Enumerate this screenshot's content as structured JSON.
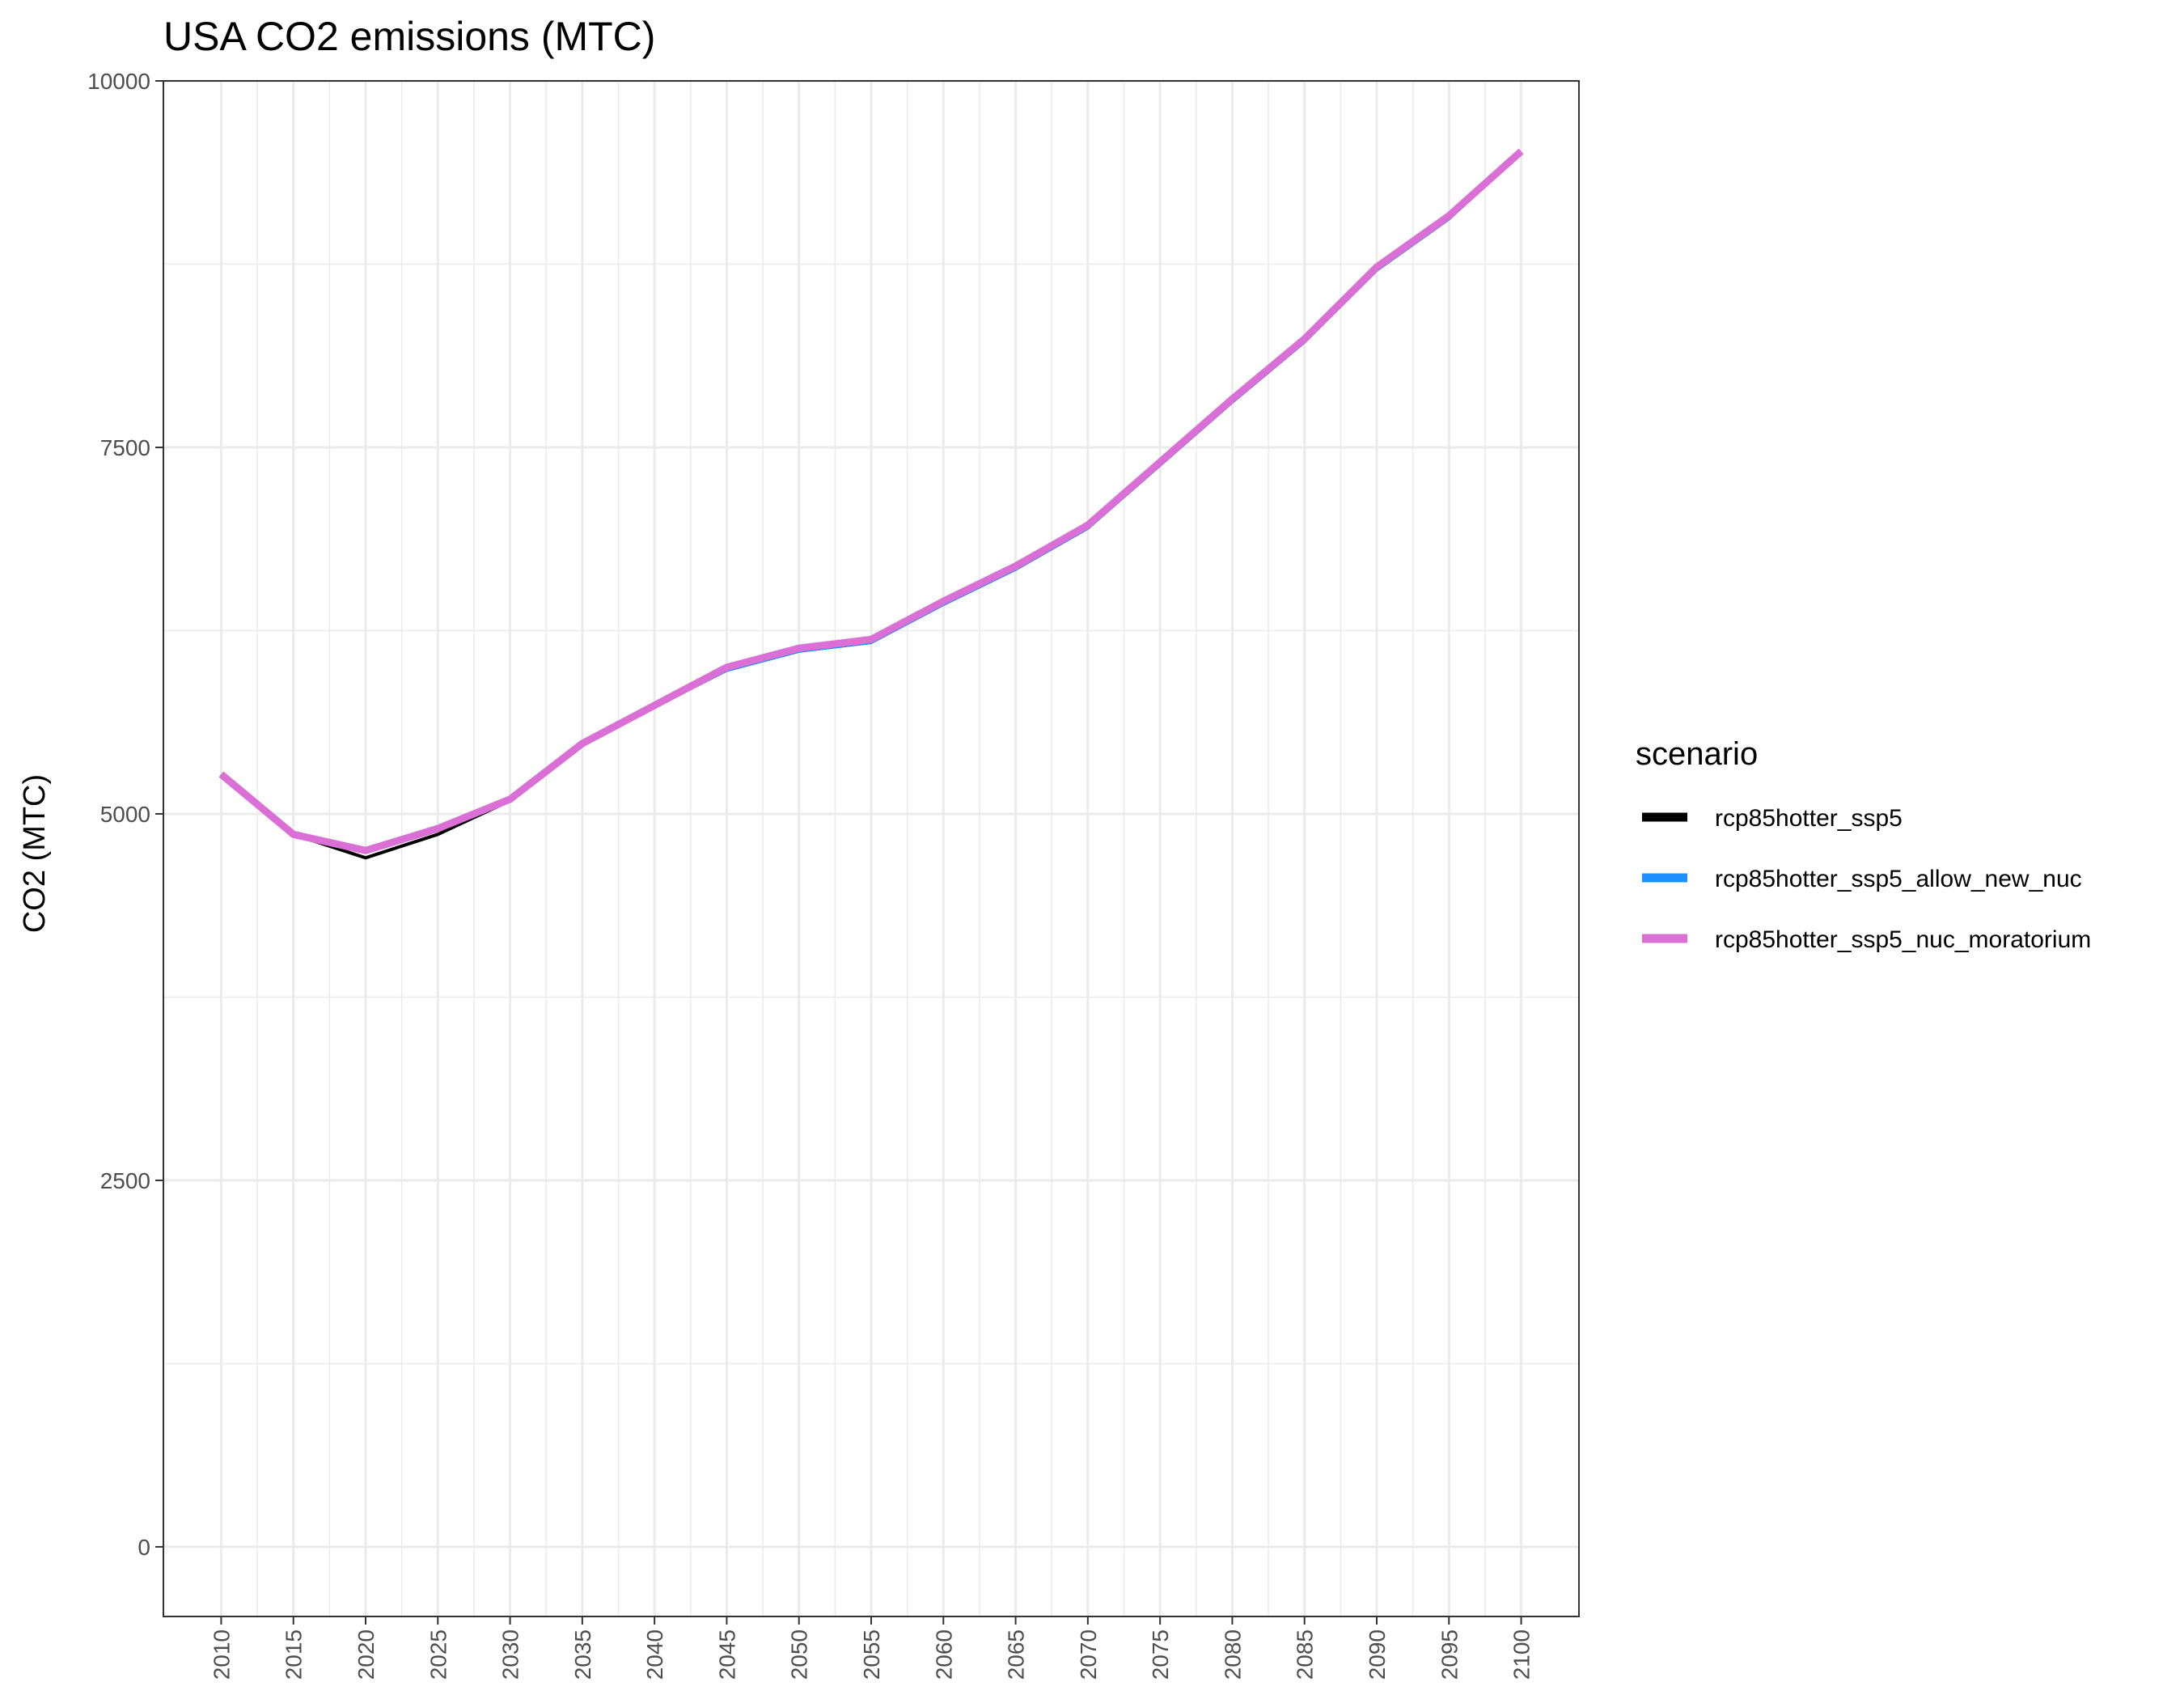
{
  "chart_data": {
    "type": "line",
    "title": "USA CO2 emissions (MTC)",
    "xlabel": "",
    "ylabel": "CO2 (MTC)",
    "xlim": [
      2006,
      2104
    ],
    "ylim": [
      -475,
      10000
    ],
    "x_ticks": [
      2010,
      2015,
      2020,
      2025,
      2030,
      2035,
      2040,
      2045,
      2050,
      2055,
      2060,
      2065,
      2070,
      2075,
      2080,
      2085,
      2090,
      2095,
      2100
    ],
    "y_ticks": [
      0,
      2500,
      5000,
      7500,
      10000
    ],
    "y_tick_labels": [
      "0",
      "2500",
      "5000",
      "7500",
      "10000"
    ],
    "grid": true,
    "legend": {
      "title": "scenario",
      "position": "right"
    },
    "x": [
      2010,
      2015,
      2020,
      2025,
      2030,
      2035,
      2040,
      2045,
      2050,
      2055,
      2060,
      2065,
      2070,
      2075,
      2080,
      2085,
      2090,
      2095,
      2100
    ],
    "series": [
      {
        "name": "rcp85hotter_ssp5",
        "color": "#000000",
        "values": [
          5270,
          4860,
          4700,
          4860,
          5090,
          5470,
          5730,
          5980,
          6110,
          6170,
          6430,
          6670,
          6950,
          7380,
          7810,
          8220,
          8710,
          9060,
          9510
        ]
      },
      {
        "name": "rcp85hotter_ssp5_allow_new_nuc",
        "color": "#1e90ff",
        "values": [
          5270,
          4860,
          4750,
          4900,
          5090,
          5470,
          5730,
          5980,
          6110,
          6170,
          6430,
          6670,
          6950,
          7380,
          7810,
          8220,
          8710,
          9060,
          9510
        ]
      },
      {
        "name": "rcp85hotter_ssp5_nuc_moratorium",
        "color": "#da70d6",
        "values": [
          5270,
          4860,
          4750,
          4900,
          5100,
          5480,
          5740,
          6000,
          6130,
          6190,
          6450,
          6690,
          6970,
          7400,
          7830,
          8240,
          8730,
          9080,
          9520
        ]
      }
    ]
  }
}
